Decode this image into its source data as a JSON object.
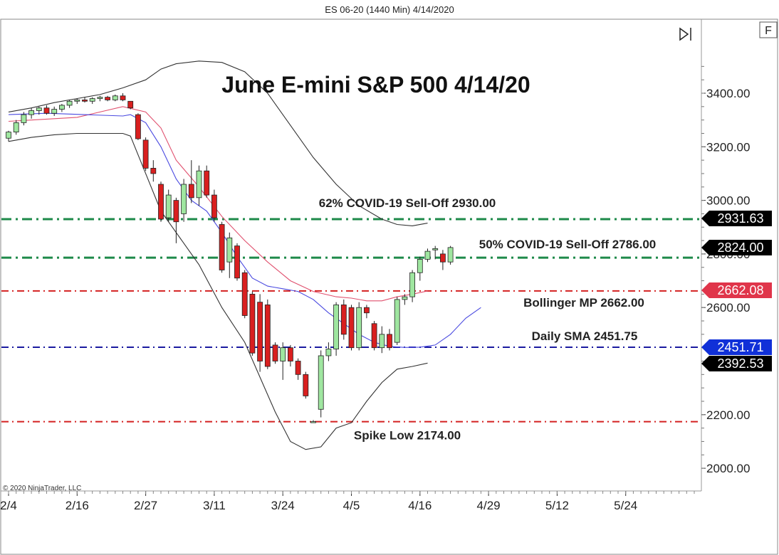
{
  "header": {
    "instrument_label": "ES 06-20 (1440 Min)  4/14/2020"
  },
  "toolbar": {
    "f_button_label": "F"
  },
  "copyright": "© 2020 NinjaTrader, LLC",
  "chart_data": {
    "type": "candlestick",
    "title": "June E-mini S&P 500 4/14/20",
    "y_ticks": [
      {
        "v": 3400,
        "label": "3400.00"
      },
      {
        "v": 3200,
        "label": "3200.00"
      },
      {
        "v": 3000,
        "label": "3000.00"
      },
      {
        "v": 2800,
        "label": "2800.00"
      },
      {
        "v": 2600,
        "label": "2600.00"
      },
      {
        "v": 2400,
        "label": "2400.00"
      },
      {
        "v": 2200,
        "label": "2200.00"
      },
      {
        "v": 2000,
        "label": "2000.00"
      }
    ],
    "x_ticks": [
      {
        "i": 0,
        "label": "2/4"
      },
      {
        "i": 9,
        "label": "2/16"
      },
      {
        "i": 18,
        "label": "2/27"
      },
      {
        "i": 27,
        "label": "3/11"
      },
      {
        "i": 36,
        "label": "3/24"
      },
      {
        "i": 45,
        "label": "4/5"
      },
      {
        "i": 54,
        "label": "4/16"
      },
      {
        "i": 63,
        "label": "4/29"
      },
      {
        "i": 72,
        "label": "5/12"
      },
      {
        "i": 81,
        "label": "5/24"
      }
    ],
    "candles": [
      [
        3232,
        3260,
        3220,
        3255
      ],
      [
        3255,
        3300,
        3245,
        3290
      ],
      [
        3290,
        3330,
        3280,
        3320
      ],
      [
        3320,
        3345,
        3305,
        3335
      ],
      [
        3335,
        3350,
        3320,
        3345
      ],
      [
        3345,
        3355,
        3320,
        3325
      ],
      [
        3325,
        3350,
        3315,
        3340
      ],
      [
        3340,
        3360,
        3330,
        3355
      ],
      [
        3355,
        3375,
        3345,
        3370
      ],
      [
        3370,
        3380,
        3360,
        3375
      ],
      [
        3375,
        3385,
        3365,
        3370
      ],
      [
        3370,
        3385,
        3360,
        3380
      ],
      [
        3380,
        3390,
        3370,
        3385
      ],
      [
        3385,
        3390,
        3370,
        3375
      ],
      [
        3375,
        3395,
        3370,
        3390
      ],
      [
        3390,
        3400,
        3370,
        3375
      ],
      [
        3370,
        3370,
        3340,
        3345
      ],
      [
        3320,
        3325,
        3225,
        3230
      ],
      [
        3225,
        3235,
        3110,
        3120
      ],
      [
        3120,
        3150,
        3070,
        3100
      ],
      [
        3060,
        3070,
        2920,
        2930
      ],
      [
        2935,
        3040,
        2920,
        3020
      ],
      [
        3000,
        3010,
        2840,
        2920
      ],
      [
        2950,
        3080,
        2920,
        3060
      ],
      [
        3060,
        3150,
        2990,
        3010
      ],
      [
        3010,
        3130,
        2980,
        3110
      ],
      [
        3110,
        3130,
        3010,
        3020
      ],
      [
        3020,
        3040,
        2920,
        2935
      ],
      [
        2910,
        2920,
        2730,
        2740
      ],
      [
        2770,
        2880,
        2710,
        2860
      ],
      [
        2830,
        2840,
        2700,
        2710
      ],
      [
        2730,
        2740,
        2560,
        2570
      ],
      [
        2650,
        2660,
        2420,
        2430
      ],
      [
        2620,
        2650,
        2360,
        2400
      ],
      [
        2610,
        2630,
        2370,
        2380
      ],
      [
        2460,
        2470,
        2390,
        2400
      ],
      [
        2400,
        2470,
        2330,
        2450
      ],
      [
        2450,
        2460,
        2380,
        2400
      ],
      [
        2400,
        2410,
        2330,
        2350
      ],
      [
        2350,
        2360,
        2260,
        2270
      ],
      [
        2170,
        2180,
        2170,
        2174
      ],
      [
        2220,
        2440,
        2190,
        2420
      ],
      [
        2420,
        2470,
        2400,
        2445
      ],
      [
        2445,
        2620,
        2420,
        2610
      ],
      [
        2610,
        2630,
        2480,
        2500
      ],
      [
        2600,
        2610,
        2440,
        2450
      ],
      [
        2450,
        2620,
        2440,
        2600
      ],
      [
        2600,
        2610,
        2560,
        2580
      ],
      [
        2540,
        2550,
        2440,
        2450
      ],
      [
        2450,
        2530,
        2430,
        2500
      ],
      [
        2500,
        2520,
        2440,
        2450
      ],
      [
        2470,
        2640,
        2460,
        2630
      ],
      [
        2630,
        2650,
        2610,
        2640
      ],
      [
        2640,
        2740,
        2620,
        2730
      ],
      [
        2730,
        2790,
        2700,
        2780
      ],
      [
        2780,
        2820,
        2770,
        2810
      ],
      [
        2815,
        2830,
        2780,
        2820
      ],
      [
        2800,
        2815,
        2740,
        2770
      ],
      [
        2770,
        2830,
        2760,
        2824
      ]
    ],
    "bb_upper": [
      [
        0,
        3330
      ],
      [
        3,
        3345
      ],
      [
        6,
        3365
      ],
      [
        9,
        3380
      ],
      [
        12,
        3395
      ],
      [
        15,
        3420
      ],
      [
        18,
        3450
      ],
      [
        20,
        3490
      ],
      [
        22,
        3510
      ],
      [
        25,
        3520
      ],
      [
        28,
        3515
      ],
      [
        31,
        3480
      ],
      [
        34,
        3400
      ],
      [
        37,
        3280
      ],
      [
        40,
        3160
      ],
      [
        43,
        3060
      ],
      [
        46,
        2980
      ],
      [
        49,
        2930
      ],
      [
        51,
        2910
      ],
      [
        53,
        2905
      ],
      [
        55,
        2915
      ]
    ],
    "bb_mid": [
      [
        0,
        3295
      ],
      [
        3,
        3300
      ],
      [
        6,
        3305
      ],
      [
        9,
        3310
      ],
      [
        12,
        3330
      ],
      [
        15,
        3350
      ],
      [
        18,
        3330
      ],
      [
        20,
        3270
      ],
      [
        22,
        3150
      ],
      [
        25,
        3050
      ],
      [
        28,
        2940
      ],
      [
        31,
        2850
      ],
      [
        34,
        2770
      ],
      [
        37,
        2700
      ],
      [
        40,
        2660
      ],
      [
        43,
        2640
      ],
      [
        45,
        2635
      ],
      [
        47,
        2625
      ],
      [
        49,
        2625
      ],
      [
        51,
        2640
      ],
      [
        53,
        2650
      ],
      [
        55,
        2662
      ]
    ],
    "bb_lower": [
      [
        0,
        3220
      ],
      [
        3,
        3235
      ],
      [
        6,
        3245
      ],
      [
        9,
        3250
      ],
      [
        12,
        3250
      ],
      [
        15,
        3250
      ],
      [
        16,
        3240
      ],
      [
        18,
        3100
      ],
      [
        20,
        2960
      ],
      [
        22,
        2880
      ],
      [
        25,
        2760
      ],
      [
        28,
        2600
      ],
      [
        31,
        2470
      ],
      [
        33,
        2340
      ],
      [
        35,
        2210
      ],
      [
        37,
        2100
      ],
      [
        39,
        2070
      ],
      [
        41,
        2080
      ],
      [
        43,
        2150
      ],
      [
        45,
        2170
      ],
      [
        47,
        2250
      ],
      [
        49,
        2320
      ],
      [
        51,
        2370
      ],
      [
        53,
        2380
      ],
      [
        55,
        2392.53
      ]
    ],
    "sma": [
      [
        0,
        3320
      ],
      [
        5,
        3325
      ],
      [
        10,
        3320
      ],
      [
        15,
        3315
      ],
      [
        16,
        3320
      ],
      [
        18,
        3290
      ],
      [
        20,
        3200
      ],
      [
        22,
        3080
      ],
      [
        24,
        3000
      ],
      [
        26,
        2960
      ],
      [
        28,
        2880
      ],
      [
        30,
        2790
      ],
      [
        32,
        2710
      ],
      [
        34,
        2680
      ],
      [
        36,
        2670
      ],
      [
        38,
        2660
      ],
      [
        40,
        2630
      ],
      [
        42,
        2580
      ],
      [
        44,
        2540
      ],
      [
        46,
        2500
      ],
      [
        48,
        2470
      ],
      [
        50,
        2455
      ],
      [
        52,
        2451
      ],
      [
        54,
        2452
      ],
      [
        56,
        2460
      ],
      [
        58,
        2500
      ],
      [
        60,
        2560
      ],
      [
        62,
        2600
      ]
    ],
    "levels": [
      {
        "name": "62% COVID-19 Sell-Off 2930.00",
        "value": 2930,
        "color": "#1e8a4a",
        "width": 3,
        "dash": "14,6,3,6"
      },
      {
        "name": "50% COVID-19 Sell-Off 2786.00",
        "value": 2786,
        "color": "#1e8a4a",
        "width": 3,
        "dash": "14,6,3,6"
      },
      {
        "name": "Bollinger MP 2662.00",
        "value": 2662,
        "color": "#d42020",
        "width": 2,
        "dash": "10,5,2,5"
      },
      {
        "name": "Daily SMA 2451.75",
        "value": 2451.75,
        "color": "#1a1aa0",
        "width": 2,
        "dash": "10,5,2,5"
      },
      {
        "name": "Spike Low 2174.00",
        "value": 2174,
        "color": "#d42020",
        "width": 2,
        "dash": "10,5,2,5"
      }
    ],
    "price_tags": [
      {
        "label": "2931.63",
        "value": 2931.63,
        "color": "#000000"
      },
      {
        "label": "2824.00",
        "value": 2824.0,
        "color": "#000000"
      },
      {
        "label": "2662.08",
        "value": 2662.08,
        "color": "#e0354a"
      },
      {
        "label": "2451.71",
        "value": 2451.71,
        "color": "#1030d8"
      },
      {
        "label": "2392.53",
        "value": 2392.53,
        "color": "#000000"
      }
    ],
    "colors": {
      "up": "#9fe6a0",
      "down": "#d91f1f",
      "bb_band": "#333333",
      "bb_mid": "#e0506e",
      "sma": "#4a4ae0"
    },
    "ylim": [
      1990,
      3560
    ]
  }
}
